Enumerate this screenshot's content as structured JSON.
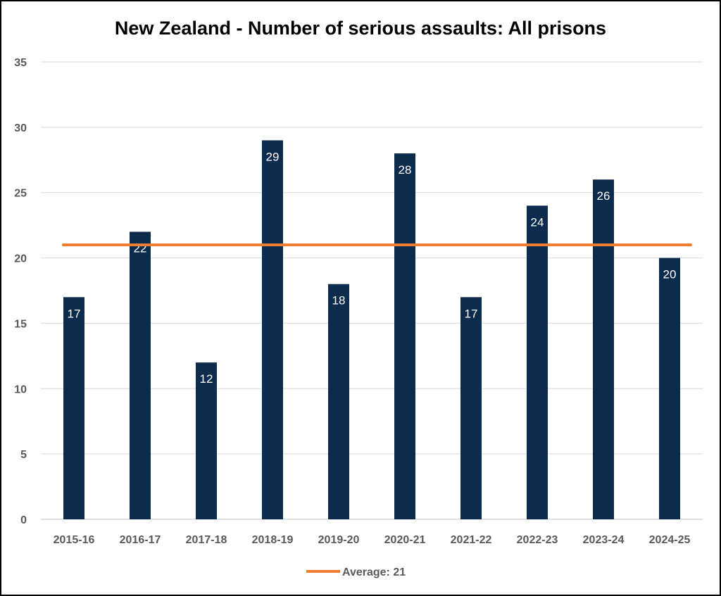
{
  "chart_data": {
    "type": "bar",
    "title": "New Zealand - Number of serious assaults: All prisons",
    "xlabel": "",
    "ylabel": "",
    "categories": [
      "2015-16",
      "2016-17",
      "2017-18",
      "2018-19",
      "2019-20",
      "2020-21",
      "2021-22",
      "2022-23",
      "2023-24",
      "2024-25"
    ],
    "values": [
      17,
      22,
      12,
      29,
      18,
      28,
      17,
      24,
      26,
      20
    ],
    "ylim": [
      0,
      35
    ],
    "yticks": [
      "0",
      "5",
      "10",
      "15",
      "20",
      "25",
      "30",
      "35"
    ],
    "grid": true,
    "average": {
      "name": "Average: 21",
      "value": 21
    },
    "legend": {
      "position": "bottom"
    },
    "colors": {
      "bar": "#0c2b4d",
      "average_line": "#ed7d31",
      "grid": "#d9d9d9"
    }
  }
}
